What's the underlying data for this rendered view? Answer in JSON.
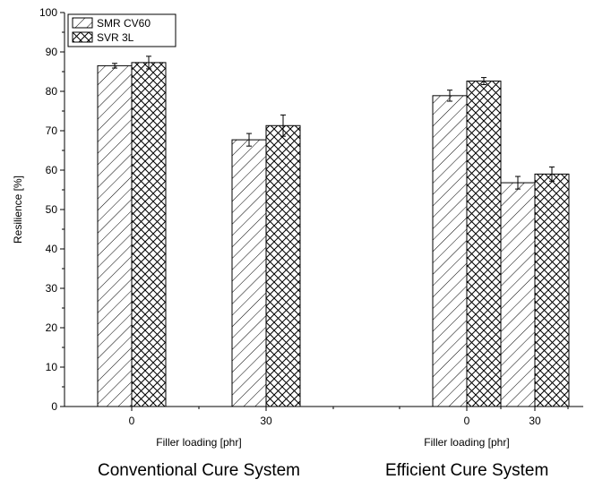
{
  "chart_data": {
    "type": "bar",
    "ylabel": "Resilience [%]",
    "ylim": [
      0,
      100
    ],
    "yticks": [
      0,
      10,
      20,
      30,
      40,
      50,
      60,
      70,
      80,
      90,
      100
    ],
    "grid": false,
    "legend_position": "top-left",
    "series": [
      {
        "name": "SMR CV60",
        "pattern": "diagonal-hatch",
        "values": [
          86.5,
          67.7,
          78.9,
          56.8
        ],
        "errors": [
          0.6,
          1.6,
          1.4,
          1.6
        ]
      },
      {
        "name": "SVR 3L",
        "pattern": "cross-hatch",
        "values": [
          87.3,
          71.3,
          82.6,
          59.0
        ],
        "errors": [
          1.6,
          2.7,
          0.9,
          1.8
        ]
      }
    ],
    "groups": [
      {
        "name": "Conventional Cure System",
        "xlabel": "Filler loading [phr]",
        "categories": [
          "0",
          "30"
        ]
      },
      {
        "name": "Efficient Cure System",
        "xlabel": "Filler loading [phr]",
        "categories": [
          "0",
          "30"
        ]
      }
    ]
  },
  "colors": {
    "bar_stroke": "#000000",
    "hatch": "#000000",
    "background": "#ffffff"
  }
}
